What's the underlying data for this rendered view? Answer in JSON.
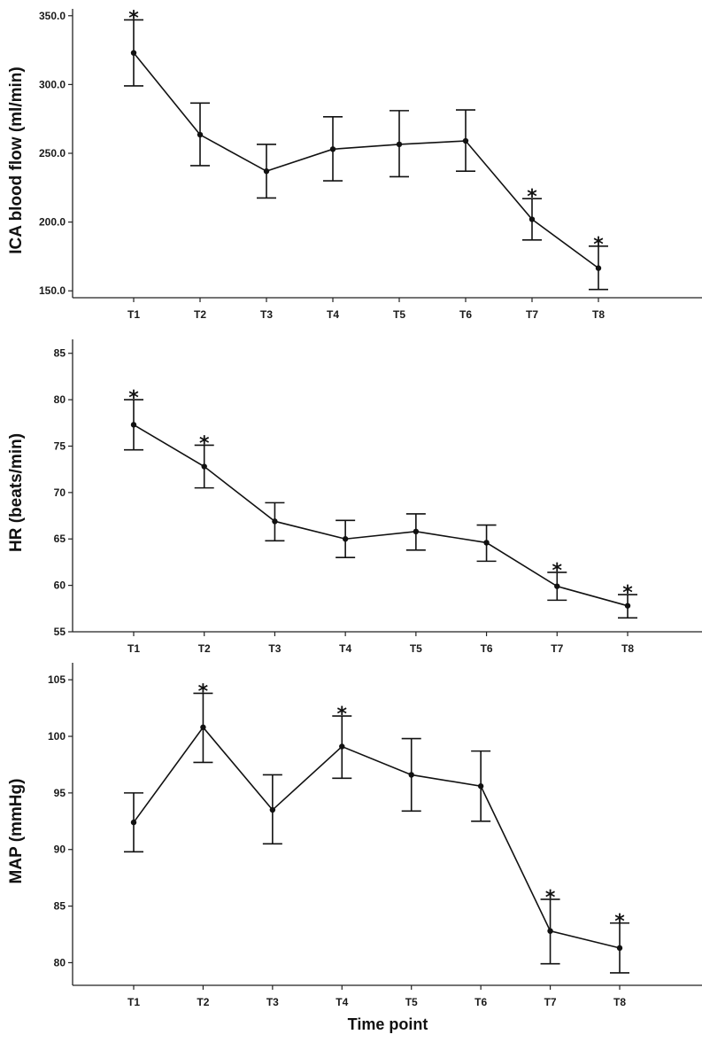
{
  "figure": {
    "shared_xlabel": "Time point"
  },
  "chart_data": [
    {
      "type": "line",
      "title": "",
      "xlabel": "",
      "ylabel": "ICA blood flow (ml/min)",
      "categories": [
        "T1",
        "T2",
        "T3",
        "T4",
        "T5",
        "T6",
        "T7",
        "T8"
      ],
      "yticks": [
        150.0,
        200.0,
        250.0,
        300.0,
        350.0
      ],
      "ytick_labels": [
        "150.0",
        "200.0",
        "250.0",
        "300.0",
        "350.0"
      ],
      "ylim": [
        145,
        355
      ],
      "series": [
        {
          "name": "ICA blood flow",
          "values": [
            323,
            263.5,
            237,
            253,
            256.5,
            259,
            202,
            166.5
          ],
          "err_low": [
            299,
            241,
            217.5,
            230,
            233,
            237,
            187,
            151
          ],
          "err_high": [
            347,
            286.5,
            256.5,
            276.5,
            281,
            281.5,
            217,
            182.5
          ]
        }
      ],
      "significance": [
        "*",
        "",
        "",
        "",
        "",
        "",
        "*",
        "*"
      ]
    },
    {
      "type": "line",
      "title": "",
      "xlabel": "",
      "ylabel": "HR (beats/min)",
      "categories": [
        "T1",
        "T2",
        "T3",
        "T4",
        "T5",
        "T6",
        "T7",
        "T8"
      ],
      "yticks": [
        55,
        60,
        65,
        70,
        75,
        80,
        85
      ],
      "ytick_labels": [
        "55",
        "60",
        "65",
        "70",
        "75",
        "80",
        "85"
      ],
      "ylim": [
        55,
        86.5
      ],
      "series": [
        {
          "name": "HR",
          "values": [
            77.3,
            72.8,
            66.9,
            65.0,
            65.8,
            64.6,
            59.9,
            57.8
          ],
          "err_low": [
            74.6,
            70.5,
            64.8,
            63.0,
            63.8,
            62.6,
            58.4,
            56.5
          ],
          "err_high": [
            80.0,
            75.1,
            68.9,
            67.0,
            67.7,
            66.5,
            61.4,
            59.0
          ]
        }
      ],
      "significance": [
        "*",
        "*",
        "",
        "",
        "",
        "",
        "*",
        "*"
      ]
    },
    {
      "type": "line",
      "title": "",
      "xlabel": "",
      "ylabel": "MAP (mmHg)",
      "categories": [
        "T1",
        "T2",
        "T3",
        "T4",
        "T5",
        "T6",
        "T7",
        "T8"
      ],
      "yticks": [
        80,
        85,
        90,
        95,
        100,
        105
      ],
      "ytick_labels": [
        "80",
        "85",
        "90",
        "95",
        "100",
        "105"
      ],
      "ylim": [
        78,
        106.5
      ],
      "series": [
        {
          "name": "MAP",
          "values": [
            92.4,
            100.8,
            93.5,
            99.1,
            96.6,
            95.6,
            82.8,
            81.3
          ],
          "err_low": [
            89.8,
            97.7,
            90.5,
            96.3,
            93.4,
            92.5,
            79.9,
            79.1
          ],
          "err_high": [
            95.0,
            103.8,
            96.6,
            101.8,
            99.8,
            98.7,
            85.6,
            83.5
          ]
        }
      ],
      "significance": [
        "",
        "*",
        "",
        "*",
        "",
        "",
        "*",
        "*"
      ]
    }
  ]
}
